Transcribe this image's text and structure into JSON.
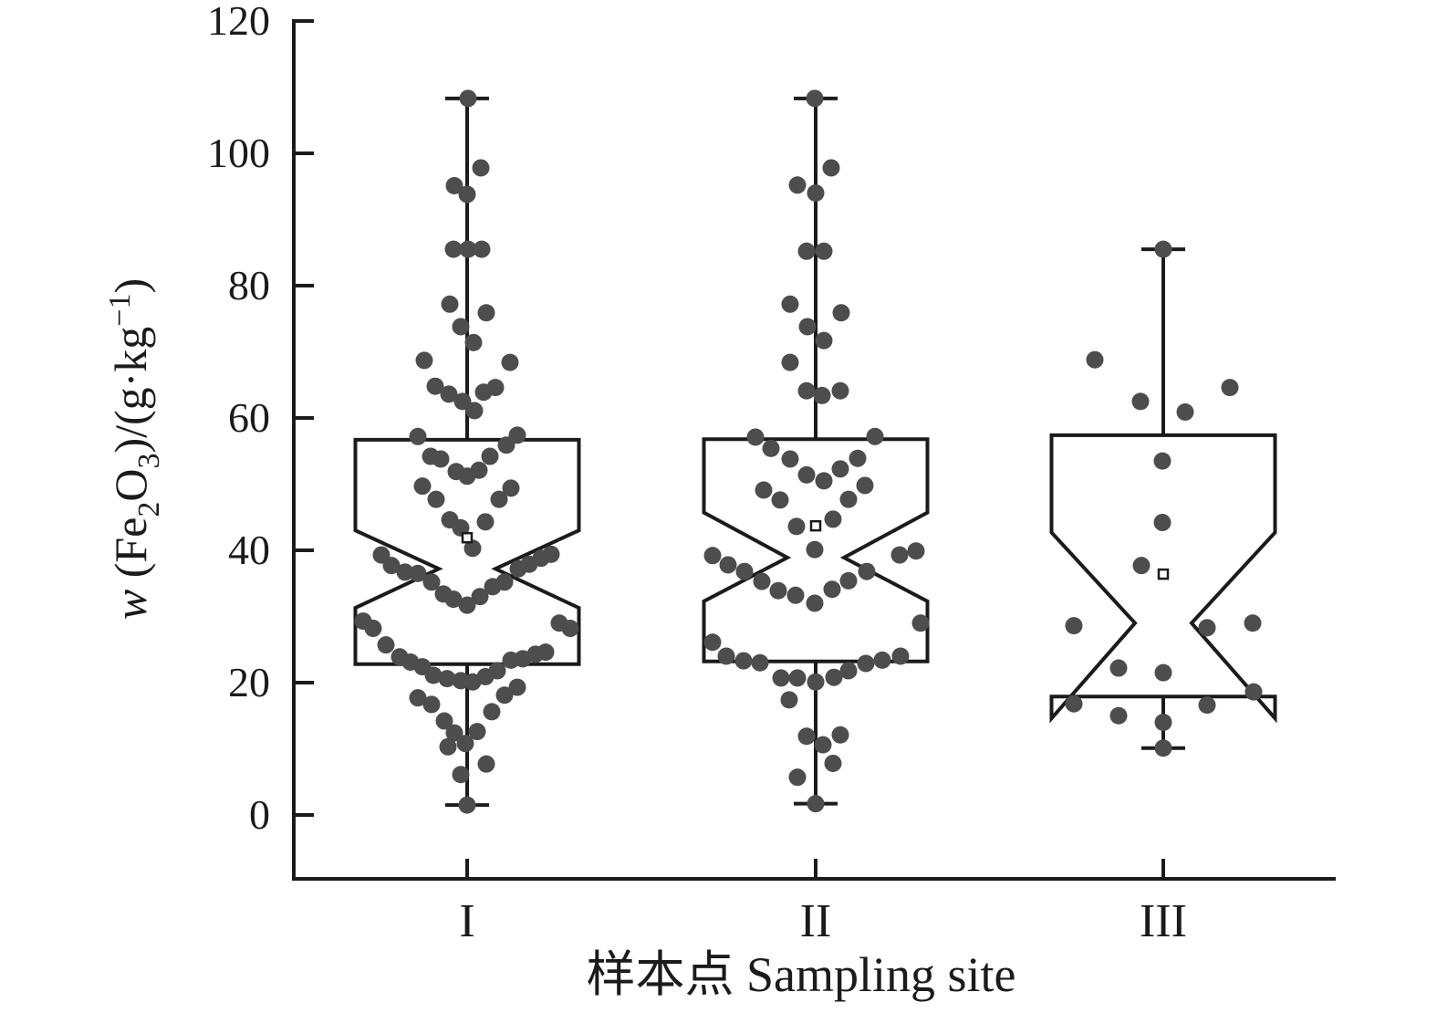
{
  "figure": {
    "background": "#ffffff"
  },
  "chart_data": {
    "type": "bar",
    "variant": "notched-boxplot-with-beeswarm-points",
    "title": "",
    "xlabel": "样本点 Sampling site",
    "ylabel": "w (Fe2O3)/(g·kg−1)",
    "ylabel_rich": [
      {
        "t": "w",
        "it": true
      },
      {
        "t": " (Fe"
      },
      {
        "t": "2",
        "s": "sub"
      },
      {
        "t": "O"
      },
      {
        "t": "3",
        "s": "sub"
      },
      {
        "t": ")/(g·kg"
      },
      {
        "t": "−1",
        "s": "sup"
      },
      {
        "t": ")"
      }
    ],
    "categories": [
      "I",
      "II",
      "III"
    ],
    "y_ticks": [
      0,
      20,
      40,
      60,
      80,
      100,
      120
    ],
    "ylim": [
      -9.7,
      120.1
    ],
    "grid": false,
    "legend": null,
    "colors": {
      "stroke": "#1b1b1b",
      "point": "#4d4d4d",
      "mean_fill": "#ffffff",
      "background": "#ffffff"
    },
    "boxes": [
      {
        "category": "I",
        "whisker_low": 1.5,
        "q1": 22.8,
        "median": 37.2,
        "q3": 56.7,
        "whisker_high": 108.3,
        "notch_low": 31.3,
        "notch_high": 43.0,
        "mean": 41.9
      },
      {
        "category": "II",
        "whisker_low": 1.7,
        "q1": 23.2,
        "median": 38.9,
        "q3": 56.8,
        "whisker_high": 108.3,
        "notch_low": 32.3,
        "notch_high": 45.7,
        "mean": 43.7
      },
      {
        "category": "III",
        "whisker_low": 10.1,
        "q1": 17.9,
        "median": 29.0,
        "q3": 57.4,
        "whisker_high": 85.5,
        "notch_low": 14.6,
        "notch_high": 42.7,
        "mean": 36.4
      }
    ],
    "points": {
      "I": [
        [
          1,
          108.3
        ],
        [
          15,
          97.8
        ],
        [
          -14,
          95.1
        ],
        [
          0,
          93.8
        ],
        [
          -15,
          85.5
        ],
        [
          1,
          85.5
        ],
        [
          16,
          85.5
        ],
        [
          -19,
          77.2
        ],
        [
          21,
          75.9
        ],
        [
          -7,
          73.8
        ],
        [
          7,
          71.4
        ],
        [
          -47,
          68.7
        ],
        [
          47,
          68.4
        ],
        [
          -35,
          64.8
        ],
        [
          -20,
          63.6
        ],
        [
          18,
          63.9
        ],
        [
          31,
          64.6
        ],
        [
          -5,
          62.5
        ],
        [
          8,
          61.1
        ],
        [
          -54,
          57.2
        ],
        [
          55,
          57.4
        ],
        [
          43,
          55.9
        ],
        [
          -40,
          54.2
        ],
        [
          -29,
          53.8
        ],
        [
          25,
          54.2
        ],
        [
          -12,
          51.9
        ],
        [
          0,
          51.2
        ],
        [
          13,
          52.1
        ],
        [
          -49,
          49.7
        ],
        [
          48,
          49.4
        ],
        [
          -34,
          47.7
        ],
        [
          35,
          47.7
        ],
        [
          -19,
          44.6
        ],
        [
          -7,
          43.4
        ],
        [
          20,
          44.3
        ],
        [
          6,
          40.3
        ],
        [
          -94,
          39.3
        ],
        [
          -83,
          37.7
        ],
        [
          -68,
          36.7
        ],
        [
          -54,
          36.5
        ],
        [
          -39,
          35.2
        ],
        [
          -26,
          33.4
        ],
        [
          -15,
          32.6
        ],
        [
          0,
          31.7
        ],
        [
          14,
          33.0
        ],
        [
          28,
          34.5
        ],
        [
          41,
          35.2
        ],
        [
          56,
          37.2
        ],
        [
          68,
          37.9
        ],
        [
          81,
          38.8
        ],
        [
          92,
          39.4
        ],
        [
          -114,
          29.3
        ],
        [
          -103,
          28.2
        ],
        [
          101,
          29.0
        ],
        [
          113,
          28.2
        ],
        [
          -89,
          25.7
        ],
        [
          -74,
          23.9
        ],
        [
          -62,
          23.1
        ],
        [
          -49,
          22.4
        ],
        [
          -37,
          21.1
        ],
        [
          -22,
          20.6
        ],
        [
          -7,
          20.3
        ],
        [
          6,
          20.1
        ],
        [
          20,
          20.9
        ],
        [
          33,
          21.8
        ],
        [
          48,
          23.4
        ],
        [
          61,
          23.6
        ],
        [
          75,
          24.3
        ],
        [
          86,
          24.6
        ],
        [
          -54,
          17.7
        ],
        [
          -39,
          16.7
        ],
        [
          -25,
          14.2
        ],
        [
          -14,
          12.4
        ],
        [
          -2,
          10.8
        ],
        [
          11,
          12.6
        ],
        [
          27,
          15.6
        ],
        [
          41,
          18.1
        ],
        [
          55,
          19.3
        ],
        [
          -21,
          10.3
        ],
        [
          21,
          7.7
        ],
        [
          -7,
          6.1
        ],
        [
          0,
          1.5
        ]
      ],
      "II": [
        [
          -1,
          108.3
        ],
        [
          17,
          97.8
        ],
        [
          -20,
          95.2
        ],
        [
          0,
          94.0
        ],
        [
          -10,
          85.2
        ],
        [
          9,
          85.2
        ],
        [
          -28,
          77.2
        ],
        [
          28,
          75.9
        ],
        [
          -9,
          73.8
        ],
        [
          9,
          71.7
        ],
        [
          -28,
          68.4
        ],
        [
          -10,
          64.1
        ],
        [
          7,
          63.4
        ],
        [
          27,
          64.1
        ],
        [
          -66,
          57.1
        ],
        [
          65,
          57.2
        ],
        [
          -49,
          55.4
        ],
        [
          -28,
          53.8
        ],
        [
          -10,
          51.4
        ],
        [
          9,
          50.5
        ],
        [
          27,
          52.3
        ],
        [
          46,
          53.9
        ],
        [
          -57,
          49.1
        ],
        [
          -39,
          47.6
        ],
        [
          36,
          47.7
        ],
        [
          54,
          49.8
        ],
        [
          19,
          44.7
        ],
        [
          -21,
          43.6
        ],
        [
          -1,
          40.1
        ],
        [
          -113,
          39.2
        ],
        [
          -96,
          37.8
        ],
        [
          -78,
          36.8
        ],
        [
          -59,
          35.3
        ],
        [
          -41,
          33.9
        ],
        [
          -22,
          33.2
        ],
        [
          -1,
          32.0
        ],
        [
          18,
          34.1
        ],
        [
          36,
          35.4
        ],
        [
          56,
          36.8
        ],
        [
          92,
          39.3
        ],
        [
          110,
          39.9
        ],
        [
          115,
          29.0
        ],
        [
          -113,
          26.1
        ],
        [
          -98,
          24.0
        ],
        [
          -79,
          23.3
        ],
        [
          -61,
          23.0
        ],
        [
          -38,
          20.7
        ],
        [
          -20,
          20.7
        ],
        [
          0,
          20.1
        ],
        [
          20,
          20.8
        ],
        [
          36,
          21.8
        ],
        [
          55,
          22.9
        ],
        [
          73,
          23.4
        ],
        [
          93,
          24.0
        ],
        [
          -29,
          17.4
        ],
        [
          -10,
          11.9
        ],
        [
          8,
          10.6
        ],
        [
          27,
          12.1
        ],
        [
          19,
          7.8
        ],
        [
          -20,
          5.7
        ],
        [
          0,
          1.7
        ]
      ],
      "III": [
        [
          0,
          85.5
        ],
        [
          -75,
          68.8
        ],
        [
          73,
          64.6
        ],
        [
          -25,
          62.5
        ],
        [
          24,
          60.9
        ],
        [
          -1,
          53.5
        ],
        [
          -1,
          44.2
        ],
        [
          -24,
          37.7
        ],
        [
          -98,
          28.6
        ],
        [
          48,
          28.3
        ],
        [
          98,
          29.0
        ],
        [
          -49,
          22.2
        ],
        [
          0,
          21.5
        ],
        [
          99,
          18.6
        ],
        [
          -98,
          16.8
        ],
        [
          -49,
          15.0
        ],
        [
          48,
          16.6
        ],
        [
          0,
          14.0
        ],
        [
          0,
          10.1
        ]
      ]
    }
  }
}
